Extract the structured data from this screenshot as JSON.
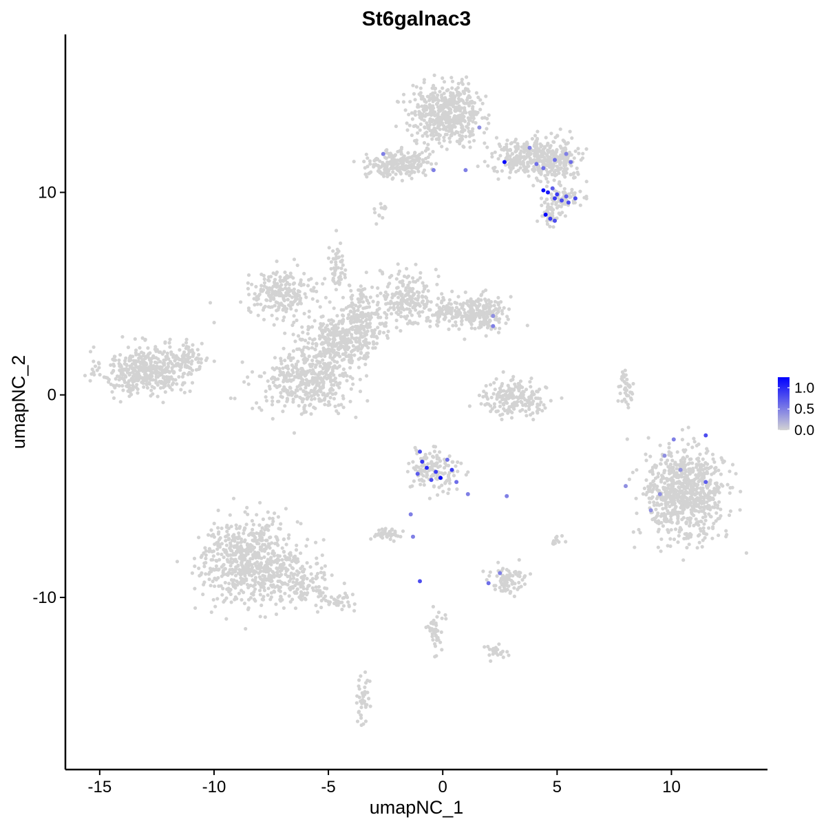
{
  "chart_data": {
    "type": "scatter",
    "title": "St6galnac3",
    "xlabel": "umapNC_1",
    "ylabel": "umapNC_2",
    "xlim": [
      -16.5,
      14.2
    ],
    "ylim": [
      -18.5,
      17.8
    ],
    "x_ticks": [
      {
        "value": -15,
        "label": "-15"
      },
      {
        "value": -10,
        "label": "-10"
      },
      {
        "value": -5,
        "label": "-5"
      },
      {
        "value": 0,
        "label": "0"
      },
      {
        "value": 5,
        "label": "5"
      },
      {
        "value": 10,
        "label": "10"
      }
    ],
    "y_ticks": [
      {
        "value": -10,
        "label": "-10"
      },
      {
        "value": 0,
        "label": "0"
      },
      {
        "value": 10,
        "label": "10"
      }
    ],
    "grid": false,
    "legend": {
      "placement": "right",
      "type": "colorbar",
      "range": [
        0,
        1.25
      ],
      "low_color": "#d3d3d3",
      "high_color": "#0000ff",
      "ticks": [
        {
          "value": 0.0,
          "label": "0.0"
        },
        {
          "value": 0.5,
          "label": "0.5"
        },
        {
          "value": 1.0,
          "label": "1.0"
        }
      ]
    },
    "background_color": "#d3d3d3",
    "clusters": [
      {
        "cx": -13.0,
        "cy": 1.2,
        "sx": 1.1,
        "sy": 0.7,
        "n": 420
      },
      {
        "cx": -11.2,
        "cy": 1.8,
        "sx": 0.6,
        "sy": 0.5,
        "n": 80
      },
      {
        "cx": -8.4,
        "cy": -8.2,
        "sx": 1.3,
        "sy": 1.2,
        "n": 650
      },
      {
        "cx": -6.3,
        "cy": -9.3,
        "sx": 0.9,
        "sy": 0.6,
        "n": 120
      },
      {
        "cx": -4.6,
        "cy": -10.2,
        "sx": 0.6,
        "sy": 0.3,
        "n": 40
      },
      {
        "cx": -7.0,
        "cy": 5.0,
        "sx": 0.9,
        "sy": 0.6,
        "n": 220
      },
      {
        "cx": -4.9,
        "cy": 2.6,
        "sx": 0.9,
        "sy": 0.8,
        "n": 240
      },
      {
        "cx": -6.0,
        "cy": 0.6,
        "sx": 1.2,
        "sy": 0.9,
        "n": 380
      },
      {
        "cx": -3.6,
        "cy": 3.4,
        "sx": 0.6,
        "sy": 1.1,
        "n": 240
      },
      {
        "cx": -1.6,
        "cy": 4.8,
        "sx": 0.7,
        "sy": 0.8,
        "n": 200
      },
      {
        "cx": 0.4,
        "cy": 4.2,
        "sx": 0.8,
        "sy": 0.5,
        "n": 130
      },
      {
        "cx": 1.8,
        "cy": 4.0,
        "sx": 0.6,
        "sy": 0.5,
        "n": 160
      },
      {
        "cx": -4.6,
        "cy": 6.4,
        "sx": 0.2,
        "sy": 0.8,
        "n": 50
      },
      {
        "cx": -2.0,
        "cy": 11.4,
        "sx": 0.8,
        "sy": 0.4,
        "n": 220
      },
      {
        "cx": 0.2,
        "cy": 13.9,
        "sx": 0.9,
        "sy": 0.8,
        "n": 520
      },
      {
        "cx": 3.6,
        "cy": 11.8,
        "sx": 0.9,
        "sy": 0.5,
        "n": 200
      },
      {
        "cx": 4.9,
        "cy": 11.6,
        "sx": 0.7,
        "sy": 0.6,
        "n": 220
      },
      {
        "cx": 5.2,
        "cy": 9.7,
        "sx": 0.5,
        "sy": 0.3,
        "n": 70
      },
      {
        "cx": 4.7,
        "cy": 8.9,
        "sx": 0.3,
        "sy": 0.3,
        "n": 40
      },
      {
        "cx": 3.1,
        "cy": -0.2,
        "sx": 0.8,
        "sy": 0.5,
        "n": 200
      },
      {
        "cx": 10.6,
        "cy": -4.9,
        "sx": 1.0,
        "sy": 1.3,
        "n": 750
      },
      {
        "cx": 8.0,
        "cy": 0.2,
        "sx": 0.2,
        "sy": 0.6,
        "n": 40
      },
      {
        "cx": -0.4,
        "cy": -3.6,
        "sx": 0.6,
        "sy": 0.6,
        "n": 140
      },
      {
        "cx": 2.8,
        "cy": -9.2,
        "sx": 0.5,
        "sy": 0.4,
        "n": 80
      },
      {
        "cx": -2.4,
        "cy": -6.9,
        "sx": 0.4,
        "sy": 0.2,
        "n": 40
      },
      {
        "cx": -0.3,
        "cy": -11.6,
        "sx": 0.2,
        "sy": 0.7,
        "n": 40
      },
      {
        "cx": 2.3,
        "cy": -12.7,
        "sx": 0.3,
        "sy": 0.2,
        "n": 25
      },
      {
        "cx": -3.5,
        "cy": -15.0,
        "sx": 0.2,
        "sy": 0.8,
        "n": 40
      },
      {
        "cx": -2.8,
        "cy": 9.0,
        "sx": 0.2,
        "sy": 0.3,
        "n": 12
      },
      {
        "cx": 5.0,
        "cy": -7.2,
        "sx": 0.2,
        "sy": 0.2,
        "n": 12
      }
    ],
    "expressing_points": [
      {
        "x": 4.4,
        "y": 10.1,
        "value": 1.2
      },
      {
        "x": 4.6,
        "y": 10.0,
        "value": 1.1
      },
      {
        "x": 4.9,
        "y": 9.7,
        "value": 0.9
      },
      {
        "x": 5.2,
        "y": 9.6,
        "value": 0.8
      },
      {
        "x": 5.5,
        "y": 9.5,
        "value": 0.8
      },
      {
        "x": 5.8,
        "y": 9.7,
        "value": 0.8
      },
      {
        "x": 5.0,
        "y": 9.9,
        "value": 0.9
      },
      {
        "x": 5.4,
        "y": 9.8,
        "value": 0.7
      },
      {
        "x": 4.8,
        "y": 10.2,
        "value": 0.7
      },
      {
        "x": 4.7,
        "y": 8.7,
        "value": 0.9
      },
      {
        "x": 4.5,
        "y": 8.9,
        "value": 1.2
      },
      {
        "x": 4.9,
        "y": 8.6,
        "value": 0.8
      },
      {
        "x": 4.4,
        "y": 11.2,
        "value": 0.6
      },
      {
        "x": 4.9,
        "y": 11.6,
        "value": 0.6
      },
      {
        "x": 5.4,
        "y": 11.9,
        "value": 0.5
      },
      {
        "x": 5.6,
        "y": 11.5,
        "value": 0.6
      },
      {
        "x": 3.8,
        "y": 12.2,
        "value": 0.5
      },
      {
        "x": 4.1,
        "y": 11.4,
        "value": 0.6
      },
      {
        "x": 2.7,
        "y": 11.5,
        "value": 1.2
      },
      {
        "x": 1.0,
        "y": 11.1,
        "value": 0.5
      },
      {
        "x": -0.4,
        "y": 11.1,
        "value": 0.5
      },
      {
        "x": 1.6,
        "y": 13.2,
        "value": 0.4
      },
      {
        "x": -2.6,
        "y": 11.9,
        "value": 0.5
      },
      {
        "x": 2.2,
        "y": 3.9,
        "value": 0.4
      },
      {
        "x": 2.2,
        "y": 3.4,
        "value": 0.5
      },
      {
        "x": -1.0,
        "y": -2.8,
        "value": 0.8
      },
      {
        "x": -0.9,
        "y": -3.3,
        "value": 0.9
      },
      {
        "x": -0.7,
        "y": -3.6,
        "value": 1.0
      },
      {
        "x": -0.3,
        "y": -3.8,
        "value": 0.9
      },
      {
        "x": -0.1,
        "y": -4.1,
        "value": 1.2
      },
      {
        "x": 0.4,
        "y": -3.7,
        "value": 0.9
      },
      {
        "x": 0.2,
        "y": -3.2,
        "value": 0.6
      },
      {
        "x": -0.5,
        "y": -4.2,
        "value": 0.8
      },
      {
        "x": -1.1,
        "y": -3.9,
        "value": 0.7
      },
      {
        "x": 0.6,
        "y": -4.3,
        "value": 0.6
      },
      {
        "x": 1.1,
        "y": -4.9,
        "value": 0.5
      },
      {
        "x": -1.4,
        "y": -5.9,
        "value": 0.5
      },
      {
        "x": -1.3,
        "y": -7.0,
        "value": 0.5
      },
      {
        "x": -1.0,
        "y": -9.2,
        "value": 0.8
      },
      {
        "x": 2.5,
        "y": -8.8,
        "value": 0.5
      },
      {
        "x": 2.0,
        "y": -9.3,
        "value": 0.6
      },
      {
        "x": 2.8,
        "y": -5.0,
        "value": 0.5
      },
      {
        "x": 10.1,
        "y": -2.2,
        "value": 0.5
      },
      {
        "x": 11.5,
        "y": -2.0,
        "value": 0.8
      },
      {
        "x": 11.5,
        "y": -4.3,
        "value": 0.7
      },
      {
        "x": 9.7,
        "y": -3.0,
        "value": 0.4
      },
      {
        "x": 9.5,
        "y": -4.9,
        "value": 0.4
      },
      {
        "x": 8.0,
        "y": -4.5,
        "value": 0.4
      },
      {
        "x": 10.4,
        "y": -3.7,
        "value": 0.4
      },
      {
        "x": 9.1,
        "y": -5.7,
        "value": 0.4
      }
    ]
  }
}
